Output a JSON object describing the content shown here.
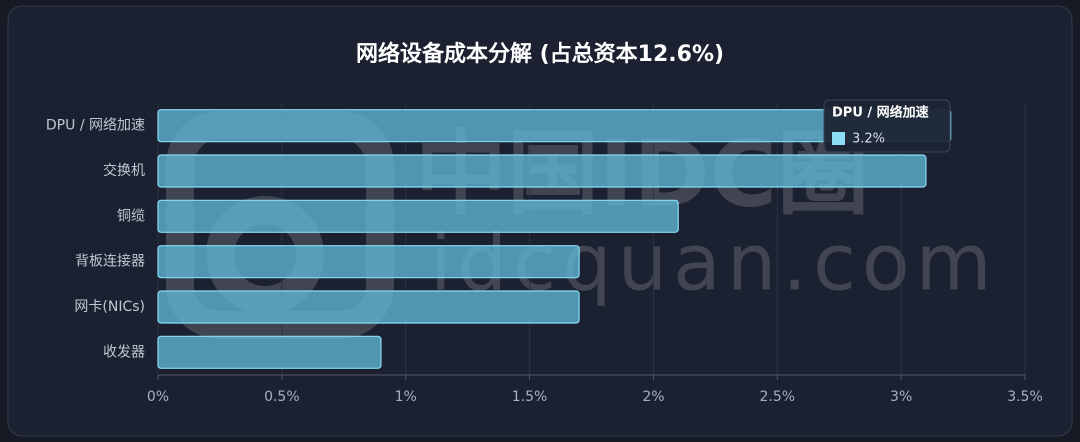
{
  "chart_data": {
    "type": "bar",
    "title": "网络设备成本分解 (占总资本12.6%)",
    "categories": [
      "DPU / 网络加速",
      "交换机",
      "铜缆",
      "背板连接器",
      "网卡(NICs)",
      "收发器"
    ],
    "values": [
      3.2,
      3.1,
      2.1,
      1.7,
      1.7,
      0.9
    ],
    "color": "#5fb4d2",
    "xlim": [
      0,
      3.5
    ],
    "xticks": [
      {
        "value": 0,
        "label": "0%"
      },
      {
        "value": 0.5,
        "label": "0.5%"
      },
      {
        "value": 1,
        "label": "1%"
      },
      {
        "value": 1.5,
        "label": "1.5%"
      },
      {
        "value": 2,
        "label": "2%"
      },
      {
        "value": 2.5,
        "label": "2.5%"
      },
      {
        "value": 3,
        "label": "3%"
      },
      {
        "value": 3.5,
        "label": "3.5%"
      }
    ],
    "grid": true,
    "tooltip": {
      "title": "DPU / 网络加速",
      "value_label": "3.2%"
    },
    "watermark": {
      "name": "中国IDC圈",
      "url": "idcquan.com"
    }
  }
}
